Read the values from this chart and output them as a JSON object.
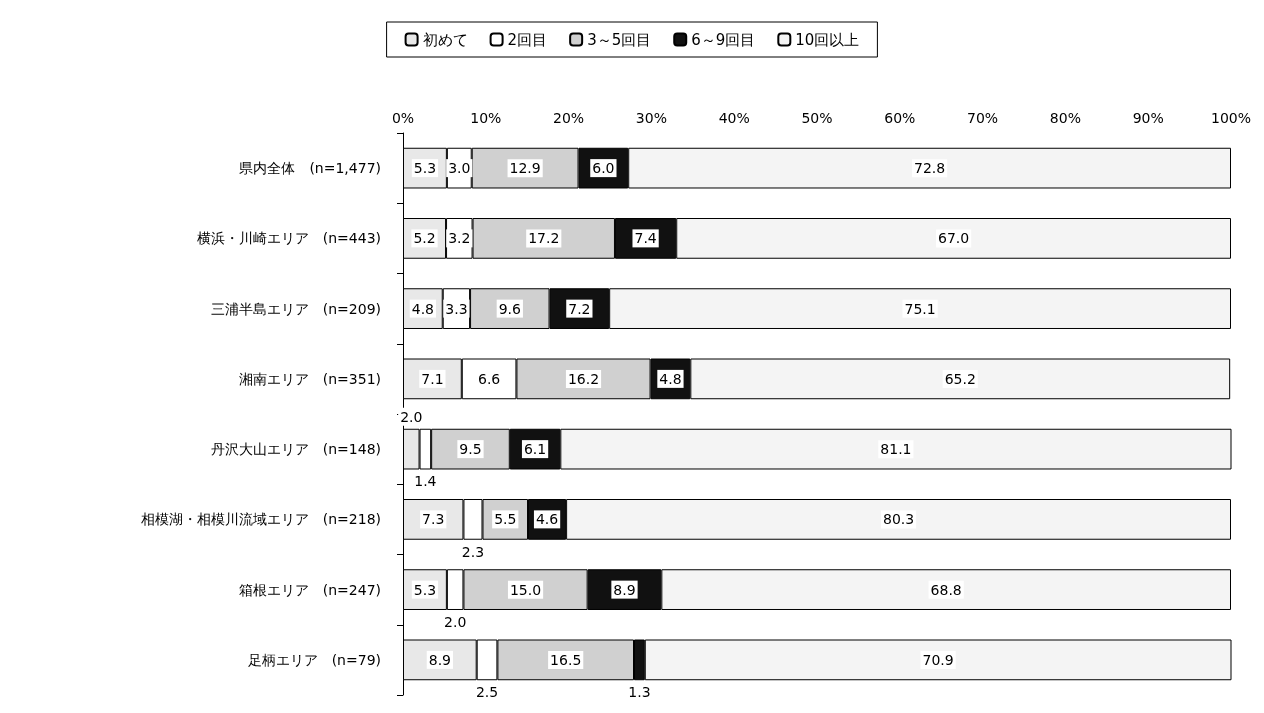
{
  "chart_data": {
    "type": "bar",
    "orientation": "horizontal",
    "stacked": true,
    "categories": [
      "県内全体　(n=1,477)",
      "横浜・川崎エリア　(n=443)",
      "三浦半島エリア　(n=209)",
      "湘南エリア　(n=351)",
      "丹沢大山エリア　(n=148)",
      "相模湖・相模川流域エリア　(n=218)",
      "箱根エリア　(n=247)",
      "足柄エリア　(n=79)"
    ],
    "series": [
      {
        "name": "初めて",
        "color": "#e8e8e8",
        "values": [
          5.3,
          5.2,
          4.8,
          7.1,
          2.0,
          7.3,
          5.3,
          8.9
        ],
        "value_labels": [
          "5.3",
          "5.2",
          "4.8",
          "7.1",
          "2.0",
          "7.3",
          "5.3",
          "8.9"
        ]
      },
      {
        "name": "2回目",
        "color": "#ffffff",
        "values": [
          3.0,
          3.2,
          3.3,
          6.6,
          1.4,
          2.3,
          2.0,
          2.5
        ],
        "value_labels": [
          "3.0",
          "3.2",
          "3.3",
          "6.6",
          "1.4",
          "2.3",
          "2.0",
          "2.5"
        ]
      },
      {
        "name": "3～5回目",
        "color": "#d0d0d0",
        "values": [
          12.9,
          17.2,
          9.6,
          16.2,
          9.5,
          5.5,
          15.0,
          16.5
        ],
        "value_labels": [
          "12.9",
          "17.2",
          "9.6",
          "16.2",
          "9.5",
          "5.5",
          "15.0",
          "16.5"
        ]
      },
      {
        "name": "6～9回目",
        "color": "#111111",
        "values": [
          6.0,
          7.4,
          7.2,
          4.8,
          6.1,
          4.6,
          8.9,
          1.3
        ],
        "value_labels": [
          "6.0",
          "7.4",
          "7.2",
          "4.8",
          "6.1",
          "4.6",
          "8.9",
          "1.3"
        ]
      },
      {
        "name": "10回以上",
        "color": "#f4f4f4",
        "values": [
          72.8,
          67.0,
          75.1,
          65.2,
          81.1,
          80.3,
          68.8,
          70.9
        ],
        "value_labels": [
          "72.8",
          "67.0",
          "75.1",
          "65.2",
          "81.1",
          "80.3",
          "68.8",
          "70.9"
        ]
      }
    ],
    "xlim": [
      0,
      100
    ],
    "xticks": [
      {
        "value": 0,
        "label": "0%"
      },
      {
        "value": 10,
        "label": "10%"
      },
      {
        "value": 20,
        "label": "20%"
      },
      {
        "value": 30,
        "label": "30%"
      },
      {
        "value": 40,
        "label": "40%"
      },
      {
        "value": 50,
        "label": "50%"
      },
      {
        "value": 60,
        "label": "60%"
      },
      {
        "value": 70,
        "label": "70%"
      },
      {
        "value": 80,
        "label": "80%"
      },
      {
        "value": 90,
        "label": "90%"
      },
      {
        "value": 100,
        "label": "100%"
      }
    ],
    "grid": false,
    "legend": "top"
  }
}
